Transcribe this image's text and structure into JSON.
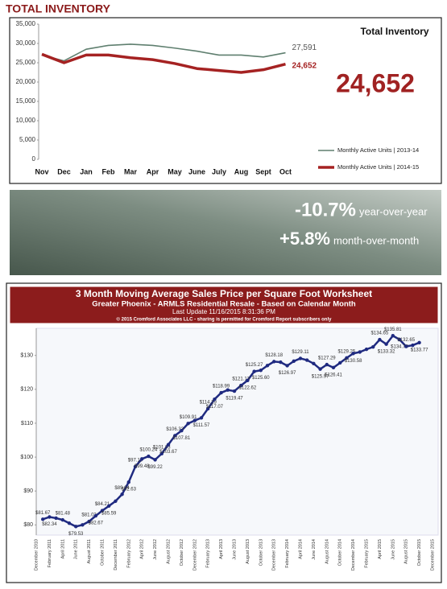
{
  "chart_data": [
    {
      "type": "line",
      "title": "TOTAL INVENTORY",
      "annotations": [
        "Total Inventory",
        "24,652"
      ],
      "categories": [
        "Nov",
        "Dec",
        "Jan",
        "Feb",
        "Mar",
        "Apr",
        "May",
        "June",
        "July",
        "Aug",
        "Sept",
        "Oct"
      ],
      "series": [
        {
          "name": "Monthly Active Units | 2013-14",
          "color": "#5f7f6f",
          "values": [
            27000,
            25500,
            28500,
            29500,
            29800,
            29500,
            28800,
            28000,
            27000,
            27000,
            26500,
            27591
          ],
          "value_labels": [
            null,
            null,
            null,
            null,
            null,
            null,
            null,
            null,
            null,
            null,
            null,
            "27,591"
          ]
        },
        {
          "name": "Monthly Active Units | 2014-15",
          "color": "#a52222",
          "values": [
            27200,
            25000,
            27000,
            27000,
            26300,
            25800,
            24800,
            23500,
            23000,
            22500,
            23200,
            24652
          ],
          "value_labels": [
            null,
            null,
            null,
            null,
            null,
            null,
            null,
            null,
            null,
            null,
            null,
            "24,652"
          ]
        }
      ],
      "ylim": [
        0,
        35000
      ],
      "yticks": [
        0,
        {
          "value": 5000,
          "label": "5,000"
        },
        {
          "value": 10000,
          "label": "10,000"
        },
        {
          "value": 15000,
          "label": "15,000"
        },
        {
          "value": 20000,
          "label": "20,000"
        },
        {
          "value": 25000,
          "label": "25,000"
        },
        {
          "value": 30000,
          "label": "30,000"
        },
        {
          "value": 35000,
          "label": "35,000"
        }
      ],
      "legend": "bottom-right"
    },
    {
      "type": "line",
      "title": "3 Month Moving Average Sales Price per Square Foot Worksheet",
      "subtitle": "Greater Phoenix - ARMLS Residential Resale - Based on Calendar Month",
      "annotations": [
        "Last Update 11/16/2015 8:31:36 PM",
        "© 2015 Cromford Associates LLC - sharing is permitted for Cromford Report subscribers only"
      ],
      "categories": [
        "December 2010",
        null,
        "February 2011",
        null,
        "April 2011",
        null,
        "June 2011",
        null,
        "August 2011",
        null,
        "October 2011",
        null,
        "December 2011",
        null,
        "February 2012",
        null,
        "April 2012",
        null,
        "June 2012",
        null,
        "August 2012",
        null,
        "October 2012",
        null,
        "December 2012",
        null,
        "February 2013",
        null,
        "April 2013",
        null,
        "June 2013",
        null,
        "August 2013",
        null,
        "October 2013",
        null,
        "December 2013",
        null,
        "February 2014",
        null,
        "April 2014",
        null,
        "June 2014",
        null,
        "August 2014",
        null,
        "October 2014",
        null,
        "December 2014",
        null,
        "February 2015",
        null,
        "April 2015",
        null,
        "June 2015",
        null,
        "August 2015",
        null,
        "October 2015",
        null,
        "December 2015"
      ],
      "series": [
        {
          "name": "3 Month Moving Average",
          "color": "#1f2a80",
          "values": [
            null,
            81.67,
            82.34,
            82.0,
            81.48,
            80.5,
            79.53,
            80.0,
            81.03,
            82.67,
            84.21,
            85.59,
            87.0,
            89.04,
            92.63,
            97.19,
            99.48,
            100.24,
            99.22,
            101.03,
            103.67,
            106.33,
            107.81,
            109.91,
            110.8,
            111.57,
            114.29,
            117.07,
            118.99,
            119.8,
            119.47,
            121.13,
            122.62,
            125.27,
            125.6,
            127.0,
            128.18,
            128.0,
            126.97,
            128.3,
            129.11,
            128.6,
            127.6,
            125.97,
            127.29,
            126.41,
            127.8,
            129.25,
            130.58,
            131.0,
            131.8,
            132.5,
            134.65,
            133.32,
            135.81,
            134.7,
            132.65,
            133.0,
            133.77,
            null,
            null
          ],
          "value_labels": [
            null,
            "$81.67",
            "$82.34",
            null,
            "$81.48",
            null,
            "$79.53",
            null,
            "$81.03",
            "$82.67",
            "$84.21",
            "$85.59",
            null,
            "$89.04",
            "$92.63",
            "$97.19",
            "$99.48",
            "$100.24",
            "$99.22",
            "$101.03",
            "$103.67",
            "$106.33",
            "$107.81",
            "$109.91",
            null,
            "$111.57",
            "$114.29",
            "$117.07",
            "$118.99",
            null,
            "$119.47",
            "$121.13",
            "$122.62",
            "$125.27",
            "$125.60",
            null,
            "$128.18",
            null,
            "$126.97",
            null,
            "$129.11",
            null,
            null,
            "$125.97",
            "$127.29",
            "$126.41",
            null,
            "$129.25",
            "$130.58",
            null,
            null,
            null,
            "$134.65",
            "$133.32",
            "$135.81",
            "$134.70",
            "$132.65",
            null,
            "$133.77",
            null,
            null
          ]
        }
      ],
      "ylim": [
        77,
        138
      ],
      "yticks": [
        {
          "value": 80,
          "label": "$80"
        },
        {
          "value": 90,
          "label": "$90"
        },
        {
          "value": 100,
          "label": "$100"
        },
        {
          "value": 110,
          "label": "$110"
        },
        {
          "value": 120,
          "label": "$120"
        },
        {
          "value": 130,
          "label": "$130"
        }
      ]
    }
  ],
  "stats": {
    "yoy": "-10.7%",
    "yoy_label": "year-over-year",
    "mom": "+5.8%",
    "mom_label": "month-over-month"
  }
}
